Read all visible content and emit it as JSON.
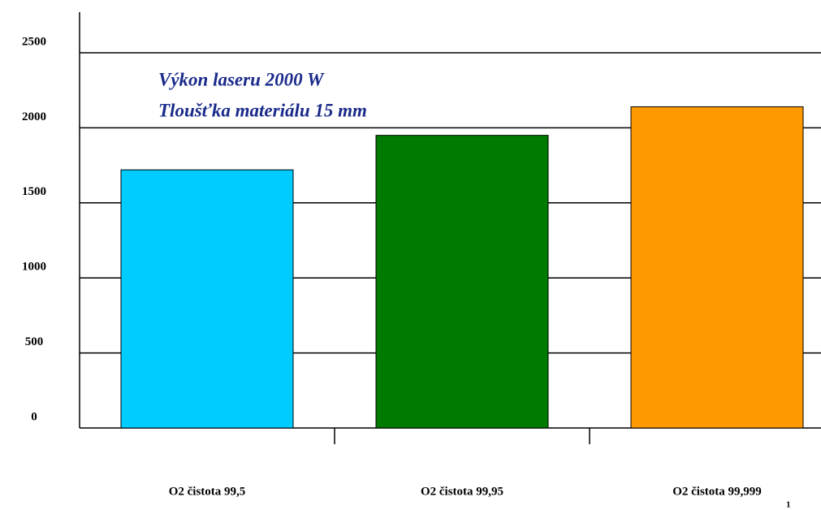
{
  "chart_data": {
    "type": "bar",
    "categories": [
      "O2 čistota 99,5",
      "O2 čistota 99,95",
      "O2 čistota 99,999"
    ],
    "values": [
      1720,
      1950,
      2140
    ],
    "colors": [
      "#00ccff",
      "#007a00",
      "#ff9900"
    ],
    "ylim": [
      0,
      2500
    ],
    "yticks": [
      0,
      500,
      1000,
      1500,
      2000,
      2500
    ],
    "grid": true,
    "annotations": [
      "Výkon laseru 2000 W",
      "Tloušťka materiálu 15 mm"
    ],
    "page_number": "1"
  }
}
